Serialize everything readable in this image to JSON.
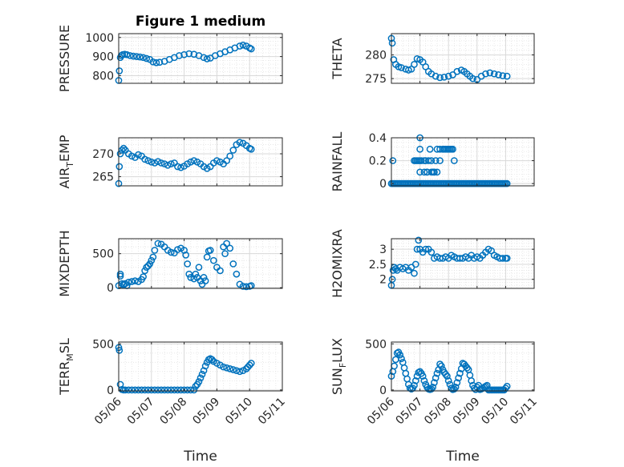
{
  "chart_data": [
    {
      "type": "scatter",
      "title": "Figure 1 medium",
      "ylabel": "PRESSURE",
      "ylabel_parts": [
        [
          "PRESSURE",
          ""
        ]
      ],
      "ylim": [
        760,
        1020
      ],
      "yticks": [
        800,
        900,
        1000
      ],
      "yticklabels": [
        "800",
        "900",
        "1000"
      ],
      "xlim": [
        0,
        5
      ],
      "xticks": [
        0,
        1,
        2,
        3,
        4,
        5
      ],
      "xticklabels": [
        "05/06",
        "05/07",
        "05/08",
        "05/09",
        "05/10",
        "05/11"
      ],
      "show_xticklabels": false,
      "xlabel": "",
      "x": [
        0,
        0.02,
        0.05,
        0.08,
        0.12,
        0.18,
        0.25,
        0.35,
        0.45,
        0.55,
        0.65,
        0.75,
        0.85,
        0.95,
        1.05,
        1.15,
        1.25,
        1.4,
        1.55,
        1.7,
        1.85,
        2.0,
        2.15,
        2.3,
        2.45,
        2.6,
        2.7,
        2.8,
        2.95,
        3.1,
        3.25,
        3.4,
        3.55,
        3.7,
        3.8,
        3.9,
        4.0,
        4.05
      ],
      "y": [
        775,
        825,
        895,
        905,
        910,
        912,
        910,
        905,
        902,
        900,
        898,
        895,
        890,
        885,
        872,
        868,
        870,
        875,
        885,
        895,
        905,
        910,
        915,
        912,
        905,
        895,
        888,
        892,
        905,
        915,
        925,
        935,
        945,
        955,
        960,
        955,
        945,
        940
      ]
    },
    {
      "type": "scatter",
      "title": "",
      "ylabel": "THETA",
      "ylabel_parts": [
        [
          "THETA",
          ""
        ]
      ],
      "ylim": [
        274,
        284.5
      ],
      "yticks": [
        275,
        280
      ],
      "yticklabels": [
        "275",
        "280"
      ],
      "xlim": [
        0,
        5
      ],
      "xticks": [
        0,
        1,
        2,
        3,
        4,
        5
      ],
      "xticklabels": [
        "05/06",
        "05/07",
        "05/08",
        "05/09",
        "05/10",
        "05/11"
      ],
      "show_xticklabels": false,
      "xlabel": "",
      "x": [
        0,
        0.03,
        0.08,
        0.15,
        0.25,
        0.35,
        0.5,
        0.6,
        0.7,
        0.8,
        0.9,
        1.0,
        1.1,
        1.2,
        1.3,
        1.4,
        1.55,
        1.7,
        1.85,
        2.0,
        2.15,
        2.3,
        2.45,
        2.55,
        2.65,
        2.75,
        2.85,
        3.0,
        3.15,
        3.3,
        3.45,
        3.6,
        3.75,
        3.9,
        4.05
      ],
      "y": [
        283.5,
        282.5,
        279,
        278,
        277.5,
        277.3,
        277,
        276.8,
        277,
        278,
        279.2,
        279,
        278.5,
        277.5,
        276.5,
        276,
        275.5,
        275.2,
        275.3,
        275.5,
        275.8,
        276.5,
        276.8,
        276.5,
        276,
        275.5,
        275,
        274.8,
        275.5,
        276,
        276.2,
        276,
        275.8,
        275.6,
        275.5
      ]
    },
    {
      "type": "scatter",
      "title": "",
      "ylabel": "AIR_TEMP",
      "ylabel_parts": [
        [
          "AIR",
          ""
        ],
        [
          "T",
          "sub"
        ],
        [
          "EMP",
          ""
        ]
      ],
      "ylim": [
        263,
        273.5
      ],
      "yticks": [
        265,
        270
      ],
      "yticklabels": [
        "265",
        "270"
      ],
      "xlim": [
        0,
        5
      ],
      "xticks": [
        0,
        1,
        2,
        3,
        4,
        5
      ],
      "xticklabels": [
        "05/06",
        "05/07",
        "05/08",
        "05/09",
        "05/10",
        "05/11"
      ],
      "show_xticklabels": false,
      "xlabel": "",
      "x": [
        0,
        0.02,
        0.05,
        0.1,
        0.15,
        0.2,
        0.3,
        0.4,
        0.5,
        0.6,
        0.7,
        0.8,
        0.9,
        1.0,
        1.1,
        1.2,
        1.3,
        1.4,
        1.5,
        1.6,
        1.7,
        1.8,
        1.9,
        2.0,
        2.1,
        2.2,
        2.3,
        2.4,
        2.5,
        2.6,
        2.7,
        2.8,
        2.9,
        3.0,
        3.1,
        3.2,
        3.3,
        3.4,
        3.5,
        3.6,
        3.7,
        3.8,
        3.9,
        4.0,
        4.05
      ],
      "y": [
        263.5,
        267.2,
        270,
        270.8,
        271.2,
        270.8,
        270,
        269.5,
        269.2,
        269.8,
        269.5,
        268.8,
        268.5,
        268.2,
        268,
        268.3,
        268,
        267.8,
        267.5,
        267.8,
        268,
        267.2,
        267,
        267.3,
        267.8,
        268.2,
        268.5,
        268.2,
        267.8,
        267.2,
        266.8,
        267.2,
        268,
        268.5,
        268.2,
        267.8,
        268.5,
        269.5,
        270.8,
        272,
        272.5,
        272.3,
        271.8,
        271.2,
        271
      ]
    },
    {
      "type": "scatter",
      "title": "",
      "ylabel": "RAINFALL",
      "ylabel_parts": [
        [
          "RAINFALL",
          ""
        ]
      ],
      "ylim": [
        -0.02,
        0.4
      ],
      "yticks": [
        0,
        0.2,
        0.4
      ],
      "yticklabels": [
        "0",
        "0.2",
        "0.4"
      ],
      "xlim": [
        0,
        5
      ],
      "xticks": [
        0,
        1,
        2,
        3,
        4,
        5
      ],
      "xticklabels": [
        "05/06",
        "05/07",
        "05/08",
        "05/09",
        "05/10",
        "05/11"
      ],
      "show_xticklabels": false,
      "xlabel": "",
      "x": [
        0,
        0.05,
        0.1,
        0.15,
        0.2,
        0.25,
        0.3,
        0.35,
        0.4,
        0.45,
        0.5,
        0.55,
        0.6,
        0.65,
        0.7,
        0.75,
        0.8,
        0.85,
        0.9,
        0.95,
        1.0,
        1.05,
        1.1,
        1.15,
        1.2,
        1.25,
        1.3,
        1.35,
        1.4,
        1.45,
        1.5,
        1.55,
        1.6,
        1.65,
        1.7,
        1.75,
        1.8,
        1.85,
        1.9,
        1.95,
        2.0,
        2.05,
        2.1,
        2.15,
        2.2,
        2.25,
        2.3,
        2.35,
        2.4,
        2.45,
        2.5,
        2.55,
        2.6,
        2.65,
        2.7,
        2.75,
        2.8,
        2.85,
        2.9,
        2.95,
        3.0,
        3.05,
        3.1,
        3.15,
        3.2,
        3.25,
        3.3,
        3.35,
        3.4,
        3.45,
        3.5,
        3.55,
        3.6,
        3.65,
        3.7,
        3.75,
        3.8,
        3.85,
        3.9,
        3.95,
        4.0,
        4.05,
        0.05,
        0.8,
        0.85,
        0.9,
        0.95,
        1.0,
        1.0,
        1.0,
        1.0,
        1.05,
        1.15,
        1.2,
        1.25,
        1.3,
        1.35,
        1.4,
        1.45,
        1.5,
        1.55,
        1.6,
        1.6,
        1.7,
        1.7,
        1.8,
        1.85,
        1.9,
        1.95,
        2.0,
        2.05,
        2.1,
        2.15,
        2.2,
        1.15,
        1.25,
        1.4,
        1.5
      ],
      "y": [
        0,
        0,
        0,
        0,
        0,
        0,
        0,
        0,
        0,
        0,
        0,
        0,
        0,
        0,
        0,
        0,
        0,
        0,
        0,
        0,
        0,
        0,
        0,
        0,
        0,
        0,
        0,
        0,
        0,
        0,
        0,
        0,
        0,
        0,
        0,
        0,
        0,
        0,
        0,
        0,
        0,
        0,
        0,
        0,
        0,
        0,
        0,
        0,
        0,
        0,
        0,
        0,
        0,
        0,
        0,
        0,
        0,
        0,
        0,
        0,
        0,
        0,
        0,
        0,
        0,
        0,
        0,
        0,
        0,
        0,
        0,
        0,
        0,
        0,
        0,
        0,
        0,
        0,
        0,
        0,
        0,
        0,
        0.2,
        0.2,
        0.2,
        0.2,
        0.2,
        0.4,
        0.3,
        0.2,
        0.1,
        0.2,
        0.2,
        0.2,
        0.1,
        0.2,
        0.3,
        0.2,
        0.1,
        0.1,
        0.2,
        0.3,
        0.1,
        0.2,
        0.3,
        0.3,
        0.3,
        0.3,
        0.3,
        0.3,
        0.3,
        0.3,
        0.3,
        0.2,
        0.1,
        0.1,
        0.1,
        0.1
      ]
    },
    {
      "type": "scatter",
      "title": "",
      "ylabel": "MIXDEPTH",
      "ylabel_parts": [
        [
          "MIXDEPTH",
          ""
        ]
      ],
      "ylim": [
        -10,
        720
      ],
      "yticks": [
        0,
        500
      ],
      "yticklabels": [
        "0",
        "500"
      ],
      "xlim": [
        0,
        5
      ],
      "xticks": [
        0,
        1,
        2,
        3,
        4,
        5
      ],
      "xticklabels": [
        "05/06",
        "05/07",
        "05/08",
        "05/09",
        "05/10",
        "05/11"
      ],
      "show_xticklabels": false,
      "xlabel": "",
      "x": [
        0,
        0.05,
        0.1,
        0.15,
        0.2,
        0.3,
        0.4,
        0.5,
        0.6,
        0.7,
        0.75,
        0.8,
        0.85,
        0.9,
        0.95,
        1.0,
        1.05,
        1.1,
        1.2,
        1.3,
        1.4,
        1.5,
        1.6,
        1.7,
        1.8,
        1.9,
        2.0,
        2.05,
        2.1,
        2.15,
        2.2,
        2.3,
        2.35,
        2.4,
        2.5,
        2.55,
        2.6,
        2.7,
        2.8,
        2.9,
        3.0,
        3.1,
        3.2,
        3.3,
        3.4,
        3.5,
        3.6,
        3.7,
        3.8,
        3.9,
        4.0,
        4.05,
        0.05,
        0.15,
        0.25,
        2.45,
        2.65,
        2.75,
        3.25
      ],
      "y": [
        30,
        170,
        60,
        50,
        60,
        80,
        90,
        100,
        90,
        120,
        160,
        250,
        300,
        320,
        350,
        400,
        450,
        550,
        650,
        640,
        600,
        550,
        520,
        510,
        560,
        580,
        550,
        480,
        350,
        200,
        150,
        130,
        200,
        150,
        100,
        50,
        150,
        450,
        550,
        400,
        300,
        250,
        600,
        650,
        580,
        350,
        200,
        50,
        20,
        15,
        20,
        30,
        200,
        40,
        30,
        300,
        100,
        540,
        500
      ]
    },
    {
      "type": "scatter",
      "title": "",
      "ylabel": "H2OMIXRA",
      "ylabel_parts": [
        [
          "H2OMIXRA",
          ""
        ]
      ],
      "ylim": [
        1.7,
        3.35
      ],
      "yticks": [
        2,
        2.5,
        3
      ],
      "yticklabels": [
        "2",
        "2.5",
        "3"
      ],
      "xlim": [
        0,
        5
      ],
      "xticks": [
        0,
        1,
        2,
        3,
        4,
        5
      ],
      "xticklabels": [
        "05/06",
        "05/07",
        "05/08",
        "05/09",
        "05/10",
        "05/11"
      ],
      "show_xticklabels": false,
      "xlabel": "",
      "x": [
        0,
        0.03,
        0.06,
        0.1,
        0.15,
        0.2,
        0.3,
        0.4,
        0.5,
        0.6,
        0.7,
        0.8,
        0.85,
        0.9,
        0.95,
        1.0,
        1.1,
        1.2,
        1.3,
        1.4,
        1.5,
        1.6,
        1.7,
        1.8,
        1.9,
        2.0,
        2.1,
        2.2,
        2.3,
        2.4,
        2.5,
        2.6,
        2.7,
        2.8,
        2.9,
        3.0,
        3.1,
        3.2,
        3.3,
        3.4,
        3.5,
        3.6,
        3.7,
        3.8,
        3.9,
        4.0,
        4.05
      ],
      "y": [
        1.8,
        2.0,
        2.3,
        2.4,
        2.35,
        2.3,
        2.4,
        2.35,
        2.4,
        2.3,
        2.4,
        2.2,
        2.5,
        3.0,
        3.3,
        3.0,
        2.9,
        3.0,
        3.0,
        2.9,
        2.7,
        2.75,
        2.7,
        2.7,
        2.75,
        2.7,
        2.8,
        2.75,
        2.7,
        2.7,
        2.7,
        2.75,
        2.7,
        2.8,
        2.7,
        2.75,
        2.7,
        2.8,
        2.9,
        3.0,
        2.95,
        2.8,
        2.75,
        2.7,
        2.7,
        2.7,
        2.7
      ]
    },
    {
      "type": "scatter",
      "title": "",
      "ylabel": "TERR_MSL",
      "ylabel_parts": [
        [
          "TERR",
          ""
        ],
        [
          "M",
          "sub"
        ],
        [
          "SL",
          ""
        ]
      ],
      "ylim": [
        -10,
        520
      ],
      "yticks": [
        0,
        500
      ],
      "yticklabels": [
        "0",
        "500"
      ],
      "xlim": [
        0,
        5
      ],
      "xticks": [
        0,
        1,
        2,
        3,
        4,
        5
      ],
      "xticklabels": [
        "05/06",
        "05/07",
        "05/08",
        "05/09",
        "05/10",
        "05/11"
      ],
      "show_xticklabels": true,
      "xlabel": "Time",
      "x": [
        0,
        0.02,
        0.05,
        0.1,
        0.15,
        0.2,
        0.3,
        0.4,
        0.5,
        0.6,
        0.7,
        0.8,
        0.9,
        1.0,
        1.1,
        1.2,
        1.3,
        1.4,
        1.5,
        1.6,
        1.7,
        1.8,
        1.9,
        2.0,
        2.1,
        2.2,
        2.3,
        2.35,
        2.4,
        2.45,
        2.5,
        2.55,
        2.6,
        2.65,
        2.7,
        2.75,
        2.8,
        2.85,
        2.9,
        3.0,
        3.1,
        3.2,
        3.3,
        3.4,
        3.5,
        3.6,
        3.7,
        3.8,
        3.9,
        3.95,
        4.0,
        4.05
      ],
      "y": [
        460,
        430,
        60,
        5,
        0,
        0,
        0,
        0,
        0,
        0,
        0,
        0,
        0,
        0,
        0,
        0,
        0,
        0,
        0,
        0,
        0,
        0,
        0,
        0,
        0,
        0,
        0,
        40,
        60,
        90,
        130,
        170,
        210,
        260,
        300,
        330,
        340,
        330,
        310,
        290,
        270,
        250,
        240,
        230,
        220,
        210,
        200,
        210,
        230,
        250,
        270,
        290
      ]
    },
    {
      "type": "scatter",
      "title": "",
      "ylabel": "SUN_FLUX",
      "ylabel_parts": [
        [
          "SUN",
          ""
        ],
        [
          "F",
          "sub"
        ],
        [
          "LUX",
          ""
        ]
      ],
      "ylim": [
        -10,
        520
      ],
      "yticks": [
        0,
        500
      ],
      "yticklabels": [
        "0",
        "500"
      ],
      "xlim": [
        0,
        5
      ],
      "xticks": [
        0,
        1,
        2,
        3,
        4,
        5
      ],
      "xticklabels": [
        "05/06",
        "05/07",
        "05/08",
        "05/09",
        "05/10",
        "05/11"
      ],
      "show_xticklabels": true,
      "xlabel": "Time",
      "x": [
        0,
        0.05,
        0.1,
        0.15,
        0.2,
        0.25,
        0.3,
        0.35,
        0.4,
        0.45,
        0.5,
        0.55,
        0.6,
        0.65,
        0.7,
        0.75,
        0.8,
        0.85,
        0.9,
        0.95,
        1.0,
        1.05,
        1.1,
        1.15,
        1.2,
        1.25,
        1.3,
        1.35,
        1.4,
        1.45,
        1.5,
        1.55,
        1.6,
        1.65,
        1.7,
        1.75,
        1.8,
        1.85,
        1.9,
        1.95,
        2.0,
        2.05,
        2.1,
        2.15,
        2.2,
        2.25,
        2.3,
        2.35,
        2.4,
        2.45,
        2.5,
        2.55,
        2.6,
        2.65,
        2.7,
        2.75,
        2.8,
        2.85,
        2.9,
        2.95,
        3.0,
        3.05,
        3.1,
        3.15,
        3.2,
        3.25,
        3.3,
        3.35,
        3.4,
        3.45,
        3.5,
        3.55,
        3.6,
        3.65,
        3.7,
        3.75,
        3.8,
        3.85,
        3.9,
        3.95,
        4.0,
        4.05
      ],
      "y": [
        150,
        200,
        260,
        330,
        400,
        410,
        380,
        340,
        300,
        240,
        180,
        120,
        60,
        20,
        10,
        20,
        50,
        100,
        150,
        190,
        200,
        180,
        150,
        100,
        60,
        30,
        10,
        5,
        10,
        30,
        80,
        130,
        180,
        220,
        280,
        260,
        220,
        190,
        170,
        150,
        100,
        60,
        20,
        5,
        10,
        30,
        80,
        130,
        180,
        230,
        290,
        280,
        260,
        240,
        220,
        160,
        100,
        50,
        20,
        5,
        30,
        50,
        5,
        10,
        20,
        30,
        40,
        50,
        0,
        0,
        0,
        0,
        0,
        0,
        0,
        0,
        0,
        0,
        0,
        0,
        20,
        40
      ]
    }
  ],
  "colors": {
    "marker": "#0072bd",
    "grid": "#d9d9d9",
    "axis": "#262626",
    "background": "#ffffff"
  }
}
